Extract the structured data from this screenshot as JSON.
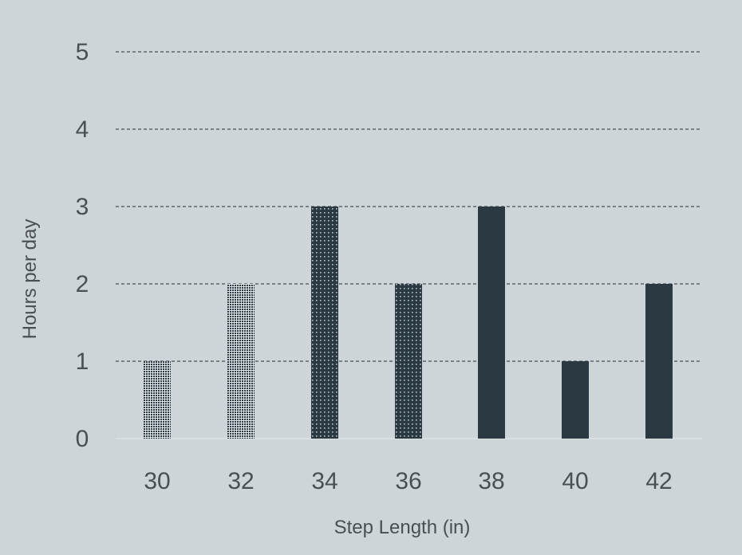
{
  "chart_data": {
    "type": "bar",
    "title": "",
    "xlabel": "Step Length (in)",
    "ylabel": "Hours per day",
    "categories": [
      "30",
      "32",
      "34",
      "36",
      "38",
      "40",
      "42"
    ],
    "values": [
      1,
      2,
      3,
      2,
      3,
      1,
      2
    ],
    "yticks": [
      "0",
      "1",
      "2",
      "3",
      "4",
      "5"
    ],
    "ylim": [
      0,
      5
    ],
    "grid": true,
    "legend": "none",
    "bar_fills": [
      "dense-dots",
      "dense-dots",
      "sparse-dots",
      "sparse-dots",
      "solid",
      "solid",
      "solid"
    ],
    "colors": {
      "background": "#cdd5d8",
      "bar": "#2b3a42",
      "grid": "#4a5258",
      "text": "#4a4f53"
    }
  }
}
